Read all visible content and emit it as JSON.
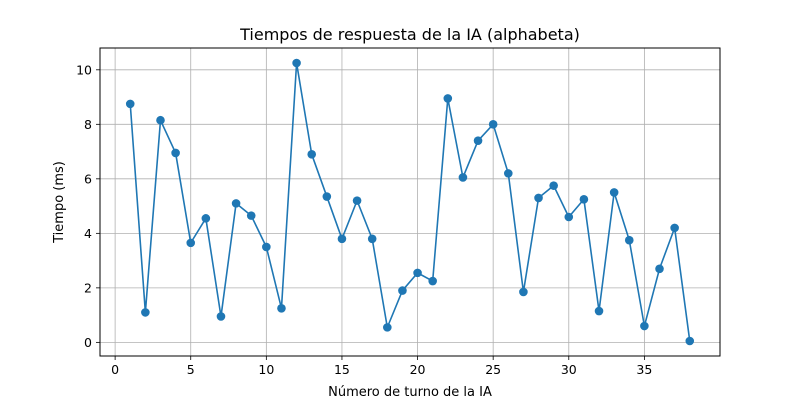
{
  "chart_data": {
    "type": "line",
    "title": "Tiempos de respuesta de la IA (alphabeta)",
    "xlabel": "Número de turno de la IA",
    "ylabel": "Tiempo (ms)",
    "xlim": [
      -1,
      40
    ],
    "ylim": [
      -0.5,
      10.8
    ],
    "xticks": [
      0,
      5,
      10,
      15,
      20,
      25,
      30,
      35
    ],
    "yticks": [
      0,
      2,
      4,
      6,
      8,
      10
    ],
    "grid": true,
    "series": [
      {
        "color": "#1f77b4",
        "marker": "circle",
        "x": [
          1,
          2,
          3,
          4,
          5,
          6,
          7,
          8,
          9,
          10,
          11,
          12,
          13,
          14,
          15,
          16,
          17,
          18,
          19,
          20,
          21,
          22,
          23,
          24,
          25,
          26,
          27,
          28,
          29,
          30,
          31,
          32,
          33,
          34,
          35,
          36,
          37,
          38
        ],
        "y": [
          8.75,
          1.1,
          8.15,
          6.95,
          3.65,
          4.55,
          0.95,
          5.1,
          4.65,
          3.5,
          1.25,
          10.25,
          6.9,
          5.35,
          3.8,
          5.2,
          3.8,
          0.55,
          1.9,
          2.55,
          2.25,
          8.95,
          6.05,
          7.4,
          8.0,
          6.2,
          1.85,
          5.3,
          5.75,
          4.6,
          5.25,
          1.15,
          5.5,
          3.75,
          0.6,
          2.7,
          4.2,
          0.05
        ]
      }
    ]
  }
}
